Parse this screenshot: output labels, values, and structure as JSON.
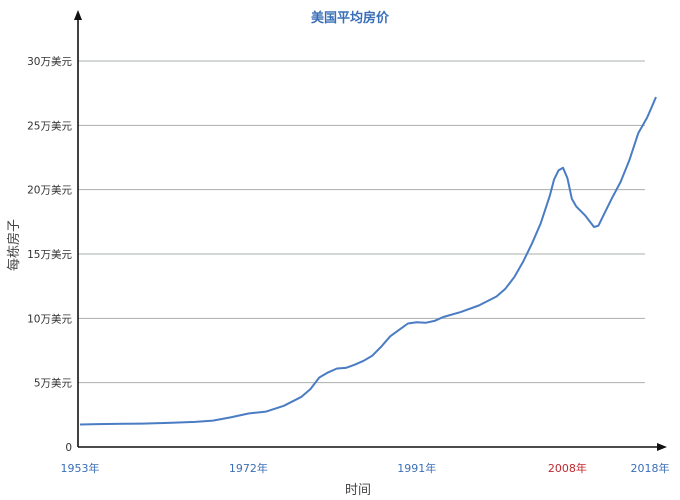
{
  "chart_data": {
    "type": "line",
    "title": "美国平均房价",
    "xlabel": "时间",
    "ylabel": "每栋房子",
    "xlim": [
      1953,
      2018
    ],
    "ylim": [
      0,
      30
    ],
    "y_unit": "万美元",
    "grid": true,
    "y_ticks": [
      {
        "value": 0,
        "label": "0"
      },
      {
        "value": 5,
        "label": "5万美元"
      },
      {
        "value": 10,
        "label": "10万美元"
      },
      {
        "value": 15,
        "label": "15万美元"
      },
      {
        "value": 20,
        "label": "20万美元"
      },
      {
        "value": 25,
        "label": "25万美元"
      },
      {
        "value": 30,
        "label": "30万美元"
      }
    ],
    "x_ticks": [
      {
        "value": 1953,
        "label": "1953年",
        "color": "#3a6fb7"
      },
      {
        "value": 1972,
        "label": "1972年",
        "color": "#3a6fb7"
      },
      {
        "value": 1991,
        "label": "1991年",
        "color": "#3a6fb7"
      },
      {
        "value": 2008,
        "label": "2008年",
        "color": "#c0282d"
      },
      {
        "value": 2018,
        "label": "2018年",
        "color": "#3a6fb7"
      }
    ],
    "series": [
      {
        "color": "#4a7cc3",
        "x": [
          1953,
          1955,
          1958,
          1960,
          1963,
          1966,
          1968,
          1970,
          1972,
          1974,
          1976,
          1978,
          1979,
          1980,
          1981,
          1982,
          1983,
          1984,
          1985,
          1986,
          1987,
          1988,
          1989,
          1990,
          1991,
          1992,
          1993,
          1994,
          1996,
          1998,
          2000,
          2001,
          2002,
          2003,
          2004,
          2005,
          2006,
          2006.5,
          2007,
          2007.5,
          2008,
          2008.5,
          2009,
          2010,
          2011,
          2011.5,
          2012,
          2013,
          2014,
          2015,
          2016,
          2017,
          2017.5,
          2018
        ],
        "values": [
          1.75,
          1.78,
          1.8,
          1.82,
          1.87,
          1.95,
          2.05,
          2.3,
          2.6,
          2.75,
          3.2,
          3.9,
          4.5,
          5.4,
          5.8,
          6.1,
          6.15,
          6.4,
          6.7,
          7.1,
          7.8,
          8.6,
          9.1,
          9.6,
          9.7,
          9.65,
          9.8,
          10.1,
          10.5,
          11.0,
          11.7,
          12.3,
          13.2,
          14.4,
          15.8,
          17.4,
          19.5,
          20.8,
          21.5,
          21.7,
          20.9,
          19.3,
          18.7,
          18.0,
          17.1,
          17.2,
          17.9,
          19.3,
          20.6,
          22.3,
          24.4,
          25.6,
          26.4,
          27.2
        ]
      }
    ]
  }
}
